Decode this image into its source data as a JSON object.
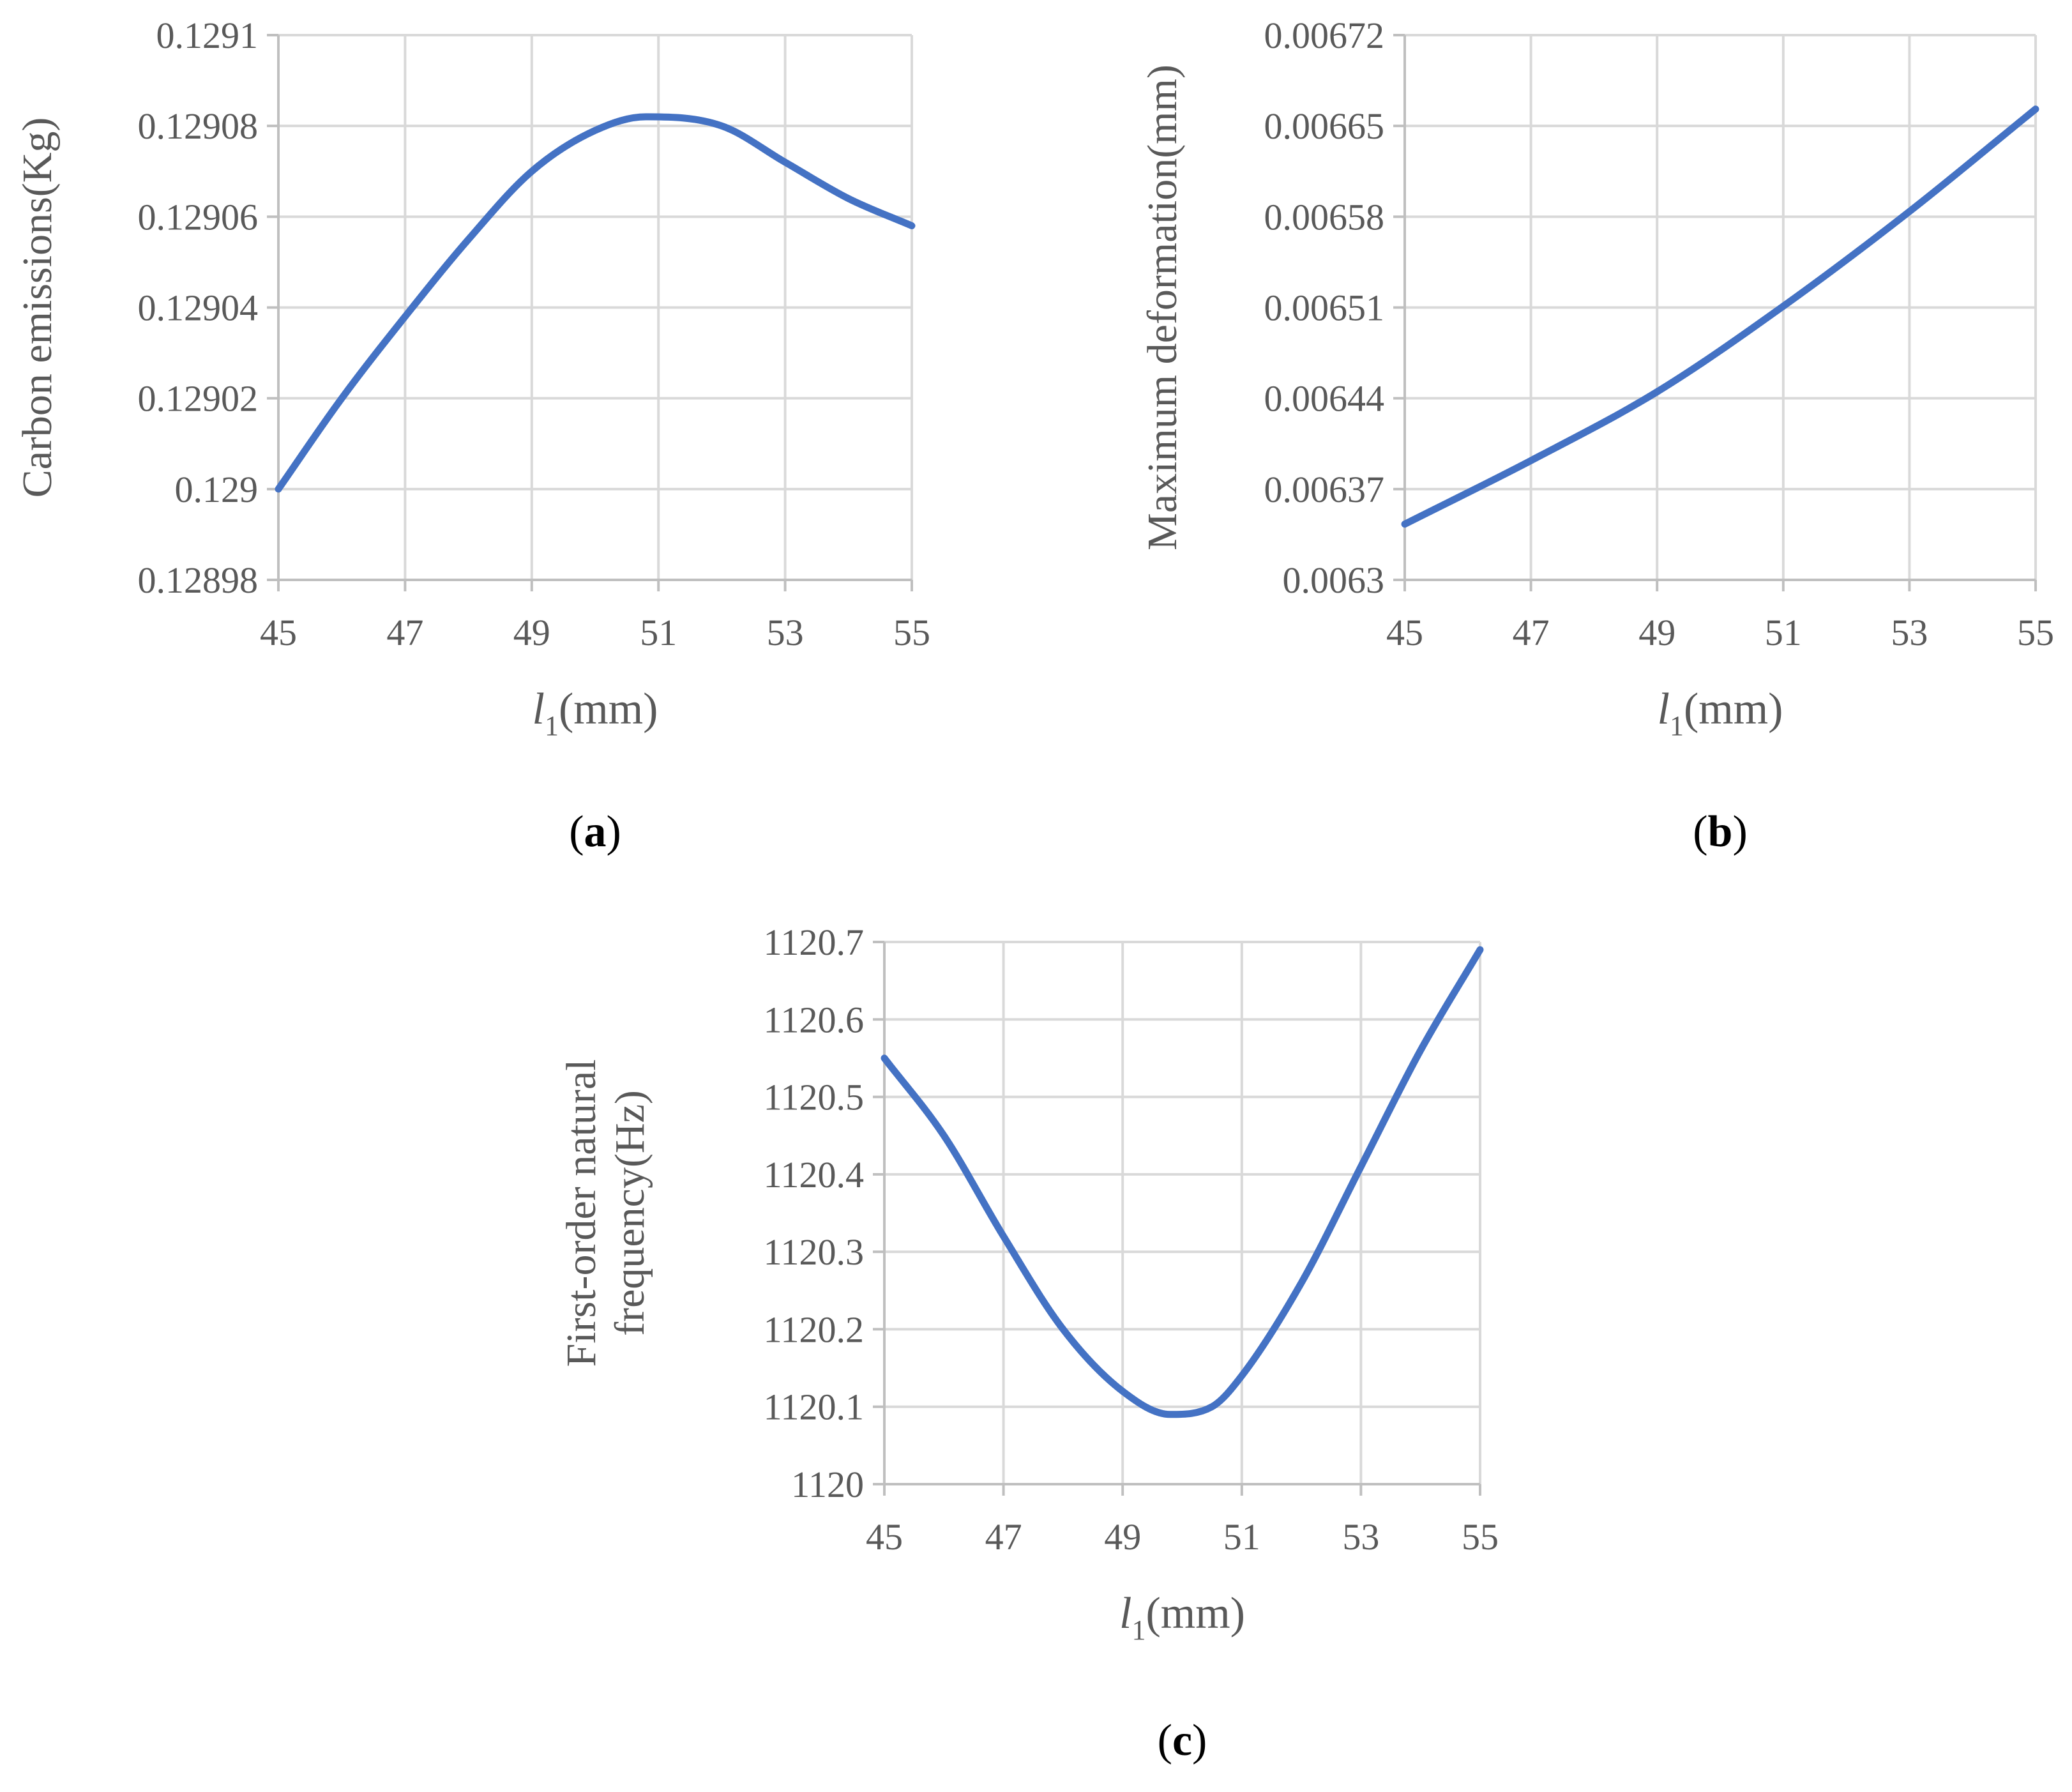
{
  "colors": {
    "line": "#4472C4",
    "grid": "#D9D9D9",
    "axis": "#BFBFBF",
    "text": "#595959"
  },
  "chart_data": [
    {
      "type": "line",
      "panel": "a",
      "caption": {
        "open": "(",
        "letter": "a",
        "close": ")"
      },
      "xlabel": {
        "var": "l",
        "sub": "1",
        "unit": "(mm)"
      },
      "ylabel": [
        "Carbon emissions(Kg)"
      ],
      "x_ticks": [
        "45",
        "47",
        "49",
        "51",
        "53",
        "55"
      ],
      "y_ticks": [
        "0.12898",
        "0.129",
        "0.12902",
        "0.12904",
        "0.12906",
        "0.12908",
        "0.1291"
      ],
      "xlim": [
        45,
        55
      ],
      "ylim": [
        0.12898,
        0.1291
      ],
      "grid": true,
      "series": [
        {
          "name": "Carbon emissions",
          "x": [
            45,
            46,
            47,
            48,
            49,
            50,
            50.8,
            52,
            53,
            54,
            55
          ],
          "y": [
            0.129,
            0.12902,
            0.129038,
            0.129055,
            0.12907,
            0.129079,
            0.129082,
            0.12908,
            0.129072,
            0.129064,
            0.129058
          ]
        }
      ]
    },
    {
      "type": "line",
      "panel": "b",
      "caption": {
        "open": "(",
        "letter": "b",
        "close": ")"
      },
      "xlabel": {
        "var": "l",
        "sub": "1",
        "unit": "(mm)"
      },
      "ylabel": [
        "Maximum deformation(mm)"
      ],
      "x_ticks": [
        "45",
        "47",
        "49",
        "51",
        "53",
        "55"
      ],
      "y_ticks": [
        "0.0063",
        "0.00637",
        "0.00644",
        "0.00651",
        "0.00658",
        "0.00665",
        "0.00672"
      ],
      "xlim": [
        45,
        55
      ],
      "ylim": [
        0.0063,
        0.00672
      ],
      "grid": true,
      "series": [
        {
          "name": "Maximum deformation",
          "x": [
            45,
            47,
            49,
            51,
            53,
            55
          ],
          "y": [
            0.006343,
            0.006392,
            0.006445,
            0.006511,
            0.006584,
            0.006663
          ]
        }
      ]
    },
    {
      "type": "line",
      "panel": "c",
      "caption": {
        "open": "(",
        "letter": "c",
        "close": ")"
      },
      "xlabel": {
        "var": "l",
        "sub": "1",
        "unit": "(mm)"
      },
      "ylabel": [
        "First-order natural",
        "frequency(Hz)"
      ],
      "x_ticks": [
        "45",
        "47",
        "49",
        "51",
        "53",
        "55"
      ],
      "y_ticks": [
        "1120",
        "1120.1",
        "1120.2",
        "1120.3",
        "1120.4",
        "1120.5",
        "1120.6",
        "1120.7"
      ],
      "xlim": [
        45,
        55
      ],
      "ylim": [
        1120,
        1120.7
      ],
      "grid": true,
      "series": [
        {
          "name": "First-order natural frequency",
          "x": [
            45,
            46,
            47,
            48,
            49,
            49.8,
            50.5,
            51,
            52,
            53,
            54,
            55
          ],
          "y": [
            1120.55,
            1120.45,
            1120.32,
            1120.2,
            1120.12,
            1120.09,
            1120.1,
            1120.14,
            1120.26,
            1120.41,
            1120.56,
            1120.69
          ]
        }
      ]
    }
  ]
}
